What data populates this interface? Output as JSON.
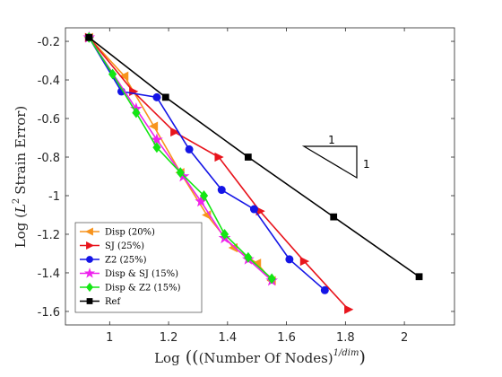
{
  "chart_data": {
    "type": "line",
    "xlabel": "Log",
    "xlabel_inner": "(Number Of Nodes)",
    "xlabel_sup": "1/dim",
    "ylabel": "Log",
    "ylabel_inner": "Strain Error",
    "ylabel_sym": "L",
    "ylabel_sup": "2",
    "xlim": [
      0.85,
      2.17
    ],
    "ylim": [
      -1.67,
      -0.13
    ],
    "xticks": [
      "1",
      "1.2",
      "1.4",
      "1.6",
      "1.8",
      "2"
    ],
    "xtick_values": [
      1,
      1.2,
      1.4,
      1.6,
      1.8,
      2
    ],
    "yticks": [
      "-0.2",
      "-0.4",
      "-0.6",
      "-0.8",
      "-1",
      "-1.2",
      "-1.4",
      "-1.6"
    ],
    "ytick_values": [
      -0.2,
      -0.4,
      -0.6,
      -0.8,
      -1,
      -1.2,
      -1.4,
      -1.6
    ],
    "grid": false,
    "legend_position": "bottom-left",
    "slope_triangle": {
      "label_top": "1",
      "label_side": "1"
    },
    "series": [
      {
        "name": "Disp (20%)",
        "color": "#f7941d",
        "marker": "triangle-left",
        "x": [
          0.93,
          1.05,
          1.15,
          1.24,
          1.33,
          1.42,
          1.5,
          1.55
        ],
        "y": [
          -0.18,
          -0.38,
          -0.64,
          -0.88,
          -1.1,
          -1.27,
          -1.35,
          -1.44
        ]
      },
      {
        "name": "SJ (25%)",
        "color": "#e8141c",
        "marker": "triangle-right",
        "x": [
          0.93,
          1.08,
          1.22,
          1.37,
          1.51,
          1.66,
          1.81
        ],
        "y": [
          -0.18,
          -0.46,
          -0.67,
          -0.8,
          -1.08,
          -1.34,
          -1.59
        ]
      },
      {
        "name": "Z2 (25%)",
        "color": "#1414e6",
        "marker": "circle",
        "x": [
          0.93,
          1.04,
          1.16,
          1.27,
          1.38,
          1.49,
          1.61,
          1.73
        ],
        "y": [
          -0.18,
          -0.46,
          -0.49,
          -0.76,
          -0.97,
          -1.07,
          -1.33,
          -1.49
        ]
      },
      {
        "name": "Disp & SJ (15%)",
        "color": "#ee22ee",
        "marker": "star",
        "x": [
          0.93,
          1.09,
          1.16,
          1.25,
          1.31,
          1.39,
          1.47,
          1.55
        ],
        "y": [
          -0.18,
          -0.55,
          -0.71,
          -0.9,
          -1.03,
          -1.22,
          -1.33,
          -1.44
        ]
      },
      {
        "name": "Disp & Z2 (15%)",
        "color": "#14e614",
        "marker": "diamond",
        "x": [
          0.93,
          1.01,
          1.09,
          1.16,
          1.24,
          1.32,
          1.39,
          1.47,
          1.55
        ],
        "y": [
          -0.18,
          -0.37,
          -0.57,
          -0.75,
          -0.88,
          -1.0,
          -1.2,
          -1.32,
          -1.43
        ]
      },
      {
        "name": "Ref",
        "color": "#000000",
        "marker": "square",
        "x": [
          0.93,
          1.19,
          1.47,
          1.76,
          2.05
        ],
        "y": [
          -0.18,
          -0.49,
          -0.8,
          -1.11,
          -1.42
        ]
      }
    ]
  }
}
